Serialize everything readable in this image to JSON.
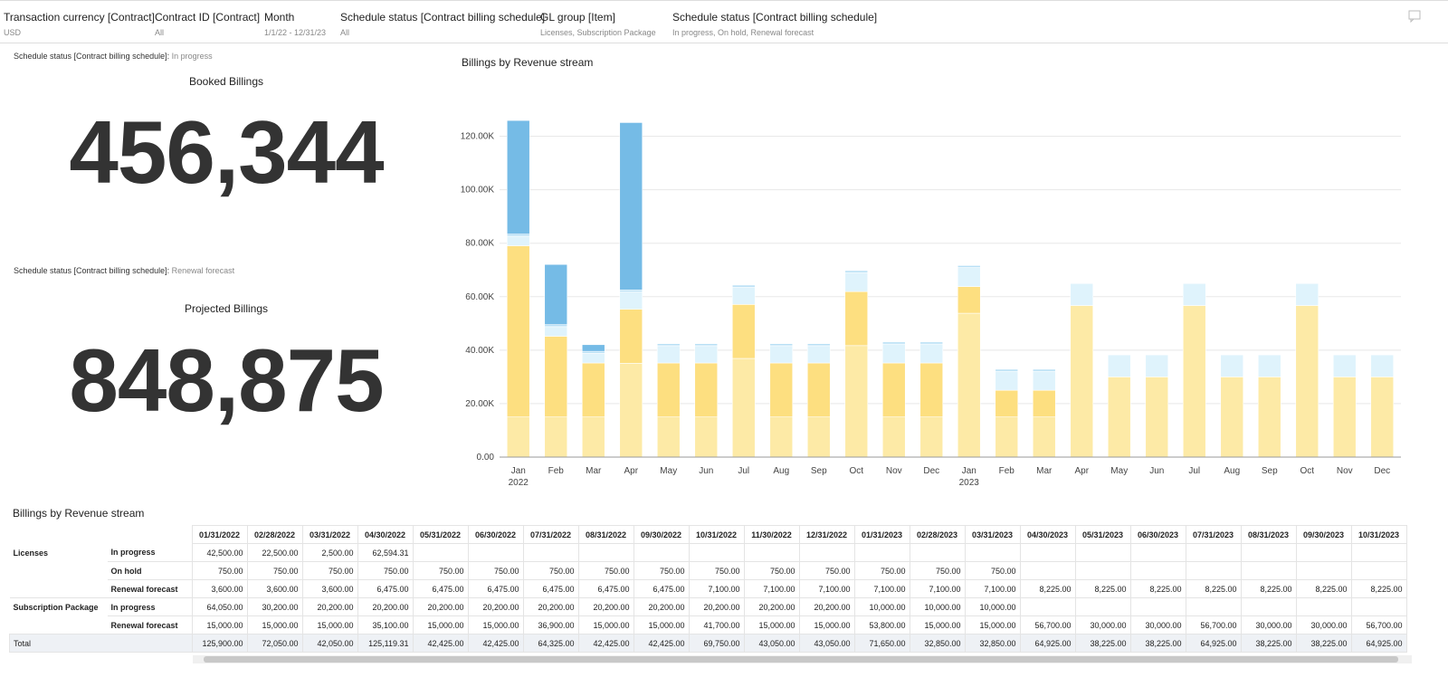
{
  "filters": [
    {
      "label": "Transaction currency [Contract]",
      "value": "USD"
    },
    {
      "label": "Contract ID [Contract]",
      "value": "All"
    },
    {
      "label": "Month",
      "value": "1/1/22 - 12/31/23"
    },
    {
      "label": "Schedule status [Contract billing schedule]",
      "value": "All"
    },
    {
      "label": "GL group [Item]",
      "value": "Licenses, Subscription Package"
    },
    {
      "label": "Schedule status [Contract billing schedule]",
      "value": "In progress, On hold, Renewal forecast"
    }
  ],
  "kpis": [
    {
      "note_label": "Schedule status [Contract billing schedule]:",
      "note_value": "In progress",
      "title": "Booked Billings",
      "value": "456,344"
    },
    {
      "note_label": "Schedule status [Contract billing schedule]:",
      "note_value": "Renewal forecast",
      "title": "Projected Billings",
      "value": "848,875"
    }
  ],
  "chart_data": {
    "type": "stacked-bar",
    "title": "Billings by Revenue stream",
    "categories": [
      "Jan",
      "Feb",
      "Mar",
      "Apr",
      "May",
      "Jun",
      "Jul",
      "Aug",
      "Sep",
      "Oct",
      "Nov",
      "Dec",
      "Jan",
      "Feb",
      "Mar",
      "Apr",
      "May",
      "Jun",
      "Jul",
      "Aug",
      "Sep",
      "Oct",
      "Nov",
      "Dec"
    ],
    "x_year_labels": [
      "2022",
      null,
      null,
      null,
      null,
      null,
      null,
      null,
      null,
      null,
      null,
      null,
      "2023",
      null,
      null,
      null,
      null,
      null,
      null,
      null,
      null,
      null,
      null,
      null
    ],
    "series": [
      {
        "color": "#fdeaa6",
        "values": [
          15000,
          15000,
          15000,
          35100,
          15000,
          15000,
          36900,
          15000,
          15000,
          41700,
          15000,
          15000,
          53800,
          15000,
          15000,
          56700,
          30000,
          30000,
          56700,
          30000,
          30000,
          56700,
          30000,
          30000
        ]
      },
      {
        "color": "#fddf80",
        "values": [
          64050,
          30200,
          20200,
          20200,
          20200,
          20200,
          20200,
          20200,
          20200,
          20200,
          20200,
          20200,
          10000,
          10000,
          10000,
          null,
          null,
          null,
          null,
          null,
          null,
          null,
          null,
          null
        ]
      },
      {
        "color": "#dff3fc",
        "values": [
          3600,
          3600,
          3600,
          6475,
          6475,
          6475,
          6475,
          6475,
          6475,
          7100,
          7100,
          7100,
          7100,
          7100,
          7100,
          8225,
          8225,
          8225,
          8225,
          8225,
          8225,
          8225,
          8225,
          8225
        ]
      },
      {
        "color": "#b9e0f5",
        "values": [
          750,
          750,
          750,
          750,
          750,
          750,
          750,
          750,
          750,
          750,
          750,
          750,
          750,
          750,
          750,
          null,
          null,
          null,
          null,
          null,
          null,
          null,
          null,
          null
        ]
      },
      {
        "color": "#75bbe6",
        "values": [
          42500,
          22500,
          2500,
          62594.31,
          null,
          null,
          null,
          null,
          null,
          null,
          null,
          null,
          null,
          null,
          null,
          null,
          null,
          null,
          null,
          null,
          null,
          null,
          null,
          null
        ]
      }
    ],
    "ylim": [
      0,
      130000
    ],
    "yticks": [
      {
        "value": 0,
        "label": "0.00"
      },
      {
        "value": 20000,
        "label": "20.00K"
      },
      {
        "value": 40000,
        "label": "40.00K"
      },
      {
        "value": 60000,
        "label": "60.00K"
      },
      {
        "value": 80000,
        "label": "80.00K"
      },
      {
        "value": 100000,
        "label": "100.00K"
      },
      {
        "value": 120000,
        "label": "120.00K"
      }
    ],
    "grid": true
  },
  "table": {
    "title": "Billings by Revenue stream",
    "columns": [
      "01/31/2022",
      "02/28/2022",
      "03/31/2022",
      "04/30/2022",
      "05/31/2022",
      "06/30/2022",
      "07/31/2022",
      "08/31/2022",
      "09/30/2022",
      "10/31/2022",
      "11/30/2022",
      "12/31/2022",
      "01/31/2023",
      "02/28/2023",
      "03/31/2023",
      "04/30/2023",
      "05/31/2023",
      "06/30/2023",
      "07/31/2023",
      "08/31/2023",
      "09/30/2023",
      "10/31/2023"
    ],
    "groups": [
      {
        "name": "Licenses",
        "rows": [
          {
            "status": "In progress",
            "values": [
              "42,500.00",
              "22,500.00",
              "2,500.00",
              "62,594.31",
              null,
              null,
              null,
              null,
              null,
              null,
              null,
              null,
              null,
              null,
              null,
              null,
              null,
              null,
              null,
              null,
              null,
              null
            ]
          },
          {
            "status": "On hold",
            "values": [
              "750.00",
              "750.00",
              "750.00",
              "750.00",
              "750.00",
              "750.00",
              "750.00",
              "750.00",
              "750.00",
              "750.00",
              "750.00",
              "750.00",
              "750.00",
              "750.00",
              "750.00",
              null,
              null,
              null,
              null,
              null,
              null,
              null
            ]
          },
          {
            "status": "Renewal forecast",
            "values": [
              "3,600.00",
              "3,600.00",
              "3,600.00",
              "6,475.00",
              "6,475.00",
              "6,475.00",
              "6,475.00",
              "6,475.00",
              "6,475.00",
              "7,100.00",
              "7,100.00",
              "7,100.00",
              "7,100.00",
              "7,100.00",
              "7,100.00",
              "8,225.00",
              "8,225.00",
              "8,225.00",
              "8,225.00",
              "8,225.00",
              "8,225.00",
              "8,225.00"
            ]
          }
        ]
      },
      {
        "name": "Subscription Package",
        "rows": [
          {
            "status": "In progress",
            "values": [
              "64,050.00",
              "30,200.00",
              "20,200.00",
              "20,200.00",
              "20,200.00",
              "20,200.00",
              "20,200.00",
              "20,200.00",
              "20,200.00",
              "20,200.00",
              "20,200.00",
              "20,200.00",
              "10,000.00",
              "10,000.00",
              "10,000.00",
              null,
              null,
              null,
              null,
              null,
              null,
              null
            ]
          },
          {
            "status": "Renewal forecast",
            "values": [
              "15,000.00",
              "15,000.00",
              "15,000.00",
              "35,100.00",
              "15,000.00",
              "15,000.00",
              "36,900.00",
              "15,000.00",
              "15,000.00",
              "41,700.00",
              "15,000.00",
              "15,000.00",
              "53,800.00",
              "15,000.00",
              "15,000.00",
              "56,700.00",
              "30,000.00",
              "30,000.00",
              "56,700.00",
              "30,000.00",
              "30,000.00",
              "56,700.00"
            ]
          }
        ]
      }
    ],
    "total": {
      "label": "Total",
      "values": [
        "125,900.00",
        "72,050.00",
        "42,050.00",
        "125,119.31",
        "42,425.00",
        "42,425.00",
        "64,325.00",
        "42,425.00",
        "42,425.00",
        "69,750.00",
        "43,050.00",
        "43,050.00",
        "71,650.00",
        "32,850.00",
        "32,850.00",
        "64,925.00",
        "38,225.00",
        "38,225.00",
        "64,925.00",
        "38,225.00",
        "38,225.00",
        "64,925.00"
      ]
    }
  }
}
